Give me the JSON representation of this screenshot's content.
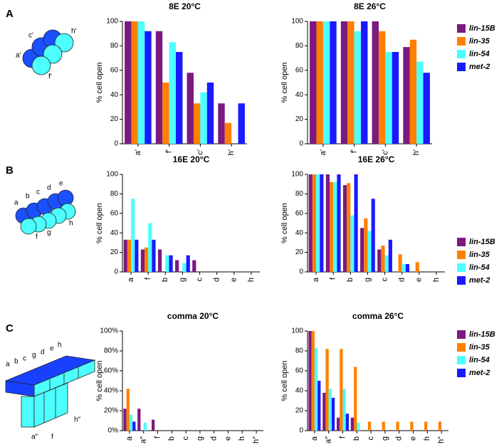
{
  "panel_labels": [
    "A",
    "B",
    "C"
  ],
  "diagrams": [
    {
      "labels": [
        "c′",
        "h′",
        "a′",
        "f′"
      ]
    },
    {
      "labels": [
        "a",
        "b",
        "c",
        "d",
        "e",
        "f",
        "g",
        "h"
      ]
    },
    {
      "labels": [
        "a",
        "b",
        "c",
        "g",
        "d",
        "e",
        "h",
        "h″",
        "a″",
        "f"
      ]
    }
  ],
  "chart_data": [
    {
      "type": "bar",
      "title": "8E 20°C",
      "y_label": "% cell open",
      "categories": [
        "a′",
        "f′",
        "c′",
        "h′"
      ],
      "series": [
        {
          "name": "lin-15B",
          "color": "#7b1a80",
          "values": [
            100,
            92,
            58,
            33
          ]
        },
        {
          "name": "lin-35",
          "color": "#ff8000",
          "values": [
            100,
            50,
            33,
            17
          ]
        },
        {
          "name": "lin-54",
          "color": "#4dffff",
          "values": [
            100,
            83,
            42,
            0
          ]
        },
        {
          "name": "met-2",
          "color": "#1a1aff",
          "values": [
            92,
            75,
            50,
            33
          ]
        }
      ],
      "ylim": [
        0,
        100
      ],
      "yticks": [
        0,
        20,
        40,
        60,
        80,
        100
      ]
    },
    {
      "type": "bar",
      "title": "8E 26°C",
      "y_label": "% cell open",
      "categories": [
        "a′",
        "f′",
        "c′",
        "h′"
      ],
      "series": [
        {
          "name": "lin-15B",
          "color": "#7b1a80",
          "values": [
            100,
            100,
            100,
            79
          ]
        },
        {
          "name": "lin-35",
          "color": "#ff8000",
          "values": [
            100,
            100,
            92,
            85
          ]
        },
        {
          "name": "lin-54",
          "color": "#4dffff",
          "values": [
            100,
            92,
            75,
            67
          ]
        },
        {
          "name": "met-2",
          "color": "#1a1aff",
          "values": [
            100,
            100,
            75,
            58
          ]
        }
      ],
      "ylim": [
        0,
        100
      ],
      "yticks": [
        0,
        20,
        40,
        60,
        80,
        100
      ],
      "legend": "right"
    },
    {
      "type": "bar",
      "title": "16E 20°C",
      "y_label": "% cell open",
      "categories": [
        "a",
        "f",
        "b",
        "g",
        "c",
        "d",
        "e",
        "h"
      ],
      "series": [
        {
          "name": "lin-15B",
          "color": "#7b1a80",
          "values": [
            33,
            23,
            23,
            12,
            12,
            0,
            0,
            0
          ]
        },
        {
          "name": "lin-35",
          "color": "#ff8000",
          "values": [
            33,
            25,
            0,
            0,
            0,
            0,
            0,
            0
          ]
        },
        {
          "name": "lin-54",
          "color": "#4dffff",
          "values": [
            75,
            50,
            17,
            9,
            0,
            0,
            0,
            0
          ]
        },
        {
          "name": "met-2",
          "color": "#1a1aff",
          "values": [
            33,
            33,
            17,
            17,
            0,
            0,
            0,
            0
          ]
        }
      ],
      "ylim": [
        0,
        100
      ],
      "yticks": [
        0,
        20,
        40,
        60,
        80,
        100
      ]
    },
    {
      "type": "bar",
      "title": "16E 26°C",
      "y_label": "% cell open",
      "categories": [
        "a",
        "f",
        "b",
        "g",
        "c",
        "d",
        "e",
        "h"
      ],
      "series": [
        {
          "name": "lin-15B",
          "color": "#7b1a80",
          "values": [
            100,
            100,
            89,
            45,
            23,
            0,
            0,
            0
          ]
        },
        {
          "name": "lin-35",
          "color": "#ff8000",
          "values": [
            100,
            92,
            91,
            55,
            27,
            18,
            10,
            0
          ]
        },
        {
          "name": "lin-54",
          "color": "#4dffff",
          "values": [
            100,
            92,
            58,
            42,
            17,
            8,
            0,
            0
          ]
        },
        {
          "name": "met-2",
          "color": "#1a1aff",
          "values": [
            100,
            100,
            100,
            75,
            33,
            8,
            0,
            0
          ]
        }
      ],
      "ylim": [
        0,
        100
      ],
      "yticks": [
        0,
        20,
        40,
        60,
        80,
        100
      ],
      "legend": "right"
    },
    {
      "type": "bar",
      "title": "comma 20°C",
      "y_label": "% cell open",
      "categories": [
        "a",
        "a″",
        "f",
        "b",
        "c",
        "g",
        "d",
        "e",
        "h",
        "h″"
      ],
      "series": [
        {
          "name": "lin-15B",
          "color": "#7b1a80",
          "values": [
            22,
            22,
            11,
            0,
            0,
            0,
            0,
            0,
            0,
            0
          ]
        },
        {
          "name": "lin-35",
          "color": "#ff8000",
          "values": [
            42,
            0,
            0,
            0,
            0,
            0,
            0,
            0,
            0,
            0
          ]
        },
        {
          "name": "lin-54",
          "color": "#4dffff",
          "values": [
            16,
            8,
            0,
            0,
            0,
            0,
            0,
            0,
            0,
            0
          ]
        },
        {
          "name": "met-2",
          "color": "#1a1aff",
          "values": [
            9,
            0,
            0,
            0,
            0,
            0,
            0,
            0,
            0,
            0
          ]
        }
      ],
      "ylim": [
        0,
        100
      ],
      "yticks": [
        {
          "value": 0,
          "label": "0%"
        },
        {
          "value": 20,
          "label": "20%"
        },
        {
          "value": 40,
          "label": "40%"
        },
        {
          "value": 60,
          "label": "60%"
        },
        {
          "value": 80,
          "label": "80%"
        },
        {
          "value": 100,
          "label": "100%"
        }
      ]
    },
    {
      "type": "bar",
      "title": "comma 26°C",
      "y_label": "% cell open",
      "categories": [
        "a",
        "a″",
        "f",
        "b",
        "c",
        "g",
        "d",
        "e",
        "h",
        "h″"
      ],
      "series": [
        {
          "name": "lin-15B",
          "color": "#7b1a80",
          "values": [
            100,
            38,
            13,
            13,
            0,
            0,
            0,
            0,
            0,
            0
          ]
        },
        {
          "name": "lin-35",
          "color": "#ff8000",
          "values": [
            100,
            82,
            82,
            64,
            9,
            9,
            9,
            9,
            9,
            9
          ]
        },
        {
          "name": "lin-54",
          "color": "#4dffff",
          "values": [
            83,
            42,
            42,
            8,
            0,
            0,
            0,
            0,
            0,
            0
          ]
        },
        {
          "name": "met-2",
          "color": "#1a1aff",
          "values": [
            50,
            33,
            17,
            0,
            0,
            0,
            0,
            0,
            0,
            0
          ]
        }
      ],
      "ylim": [
        0,
        100
      ],
      "yticks": [
        0,
        20,
        40,
        60,
        80,
        100
      ],
      "legend": "right"
    }
  ]
}
